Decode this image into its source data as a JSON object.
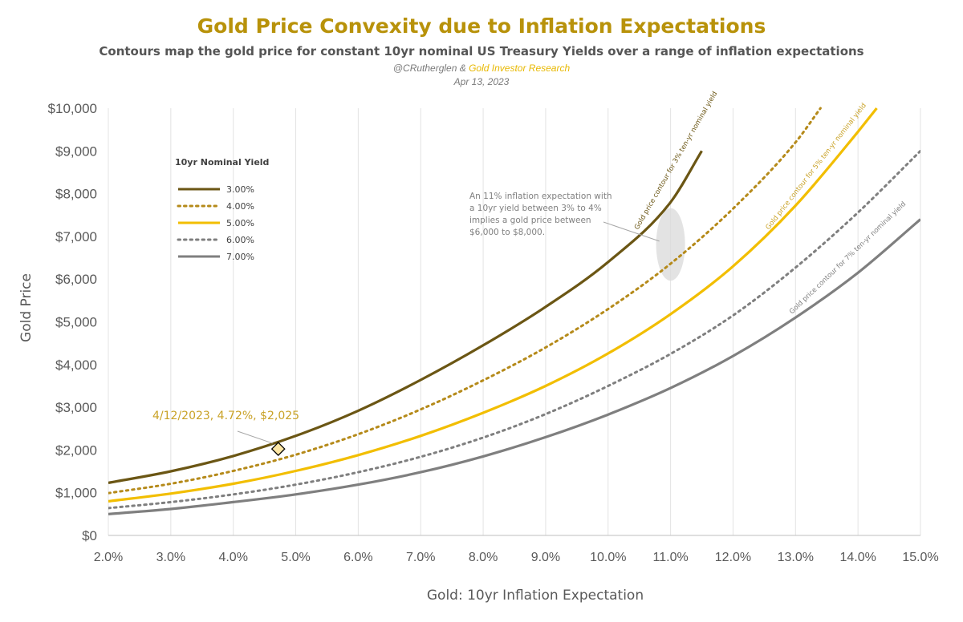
{
  "header": {
    "title": "Gold Price Convexity due to Inflation Expectations",
    "subtitle": "Contours map the gold price for constant 10yr nominal US Treasury Yields over a range of inflation expectations",
    "byline_author": "@CRutherglen & ",
    "byline_org": "Gold Investor Research",
    "date": "Apr 13, 2023"
  },
  "chart_data": {
    "type": "line",
    "xlabel": "Gold: 10yr Inflation Expectation",
    "ylabel": "Gold Price",
    "xlim": [
      2.0,
      15.0
    ],
    "ylim": [
      0,
      10000
    ],
    "grid": "vertical",
    "x_ticks": [
      "2.0%",
      "3.0%",
      "4.0%",
      "5.0%",
      "6.0%",
      "7.0%",
      "8.0%",
      "9.0%",
      "10.0%",
      "11.0%",
      "12.0%",
      "13.0%",
      "14.0%",
      "15.0%"
    ],
    "y_ticks": [
      "$0",
      "$1,000",
      "$2,000",
      "$3,000",
      "$4,000",
      "$5,000",
      "$6,000",
      "$7,000",
      "$8,000",
      "$9,000",
      "$10,000"
    ],
    "legend": {
      "title": "10yr Nominal Yield",
      "position": "upper-left"
    },
    "series": [
      {
        "name": "3.00%",
        "color": "#6b5614",
        "style": "solid",
        "x": [
          2,
          3,
          4,
          5,
          6,
          7,
          8,
          9,
          10,
          11,
          11.5
        ],
        "y": [
          1230,
          1500,
          1860,
          2330,
          2920,
          3640,
          4450,
          5350,
          6400,
          7800,
          9000
        ]
      },
      {
        "name": "4.00%",
        "color": "#b58a1a",
        "style": "dotted",
        "x": [
          2,
          3,
          4,
          5,
          6,
          7,
          8,
          9,
          10,
          11,
          12,
          13,
          13.4
        ],
        "y": [
          990,
          1210,
          1510,
          1890,
          2370,
          2950,
          3630,
          4400,
          5300,
          6360,
          7650,
          9200,
          10000
        ]
      },
      {
        "name": "5.00%",
        "color": "#f2be00",
        "style": "solid",
        "x": [
          2,
          3,
          4,
          5,
          6,
          7,
          8,
          9,
          10,
          11,
          12,
          13,
          14,
          14.3
        ],
        "y": [
          800,
          980,
          1210,
          1510,
          1880,
          2330,
          2870,
          3500,
          4260,
          5180,
          6300,
          7720,
          9450,
          10000
        ]
      },
      {
        "name": "6.00%",
        "color": "#7f7f7f",
        "style": "dotted",
        "x": [
          2,
          3,
          4,
          5,
          6,
          7,
          8,
          9,
          10,
          11,
          12,
          13,
          14,
          15
        ],
        "y": [
          640,
          780,
          960,
          1190,
          1480,
          1840,
          2290,
          2840,
          3500,
          4250,
          5150,
          6270,
          7560,
          9000
        ]
      },
      {
        "name": "7.00%",
        "color": "#7f7f7f",
        "style": "solid",
        "x": [
          2,
          3,
          4,
          5,
          6,
          7,
          8,
          9,
          10,
          11,
          12,
          13,
          14,
          15
        ],
        "y": [
          500,
          620,
          780,
          960,
          1190,
          1480,
          1850,
          2300,
          2830,
          3450,
          4200,
          5100,
          6150,
          7400
        ]
      }
    ],
    "highlight_point": {
      "x": 4.72,
      "y": 2025,
      "label": "4/12/2023, 4.72%, $2,025"
    },
    "annotation": {
      "lines": [
        "An 11% inflation expectation with",
        "a 10yr yield between 3% to 4%",
        "implies a gold price between",
        "$6,000 to $8,000."
      ],
      "target_x": 11.0,
      "target_y_range": [
        6000,
        8000
      ]
    },
    "contour_labels": [
      {
        "text": "Gold price contour for 3% ten-yr nominal yield",
        "series": "3.00%",
        "color": "#6b5614"
      },
      {
        "text": "Gold price contour for 5% ten-yr nominal yield",
        "series": "5.00%",
        "color": "#c9a227"
      },
      {
        "text": "Gold price contour for 7% ten-yr nominal yield",
        "series": "7.00%",
        "color": "#7f7f7f"
      }
    ]
  }
}
